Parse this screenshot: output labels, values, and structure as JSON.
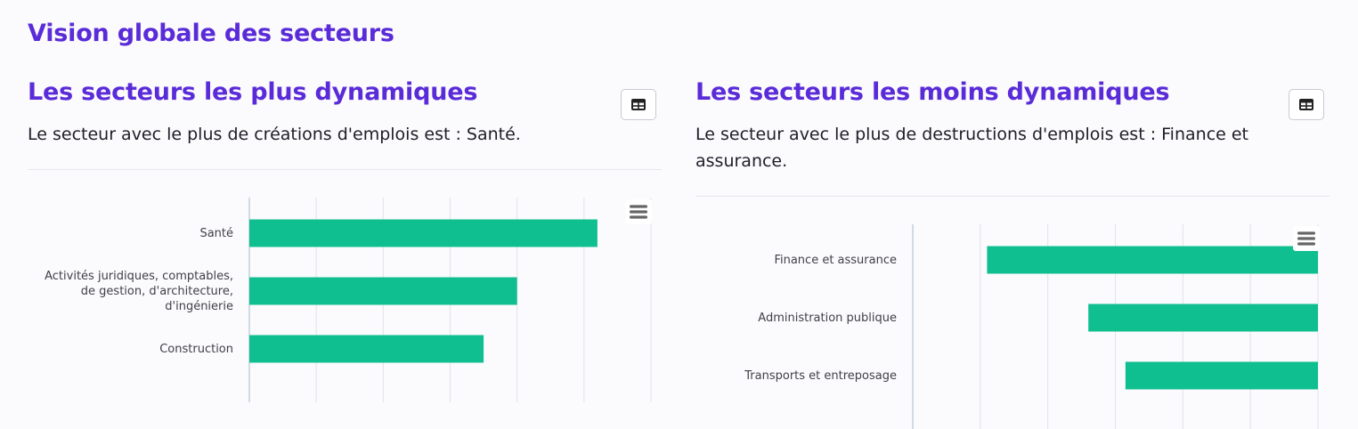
{
  "page": {
    "title": "Vision globale des secteurs"
  },
  "panels": [
    {
      "title": "Les secteurs les plus dynamiques",
      "description": "Le secteur avec le plus de créations d'emplois est : Santé.",
      "table_icon": "table-icon",
      "menu_icon": "hamburger-menu-icon"
    },
    {
      "title": "Les secteurs les moins dynamiques",
      "description": "Le secteur avec le plus de destructions d'emplois est : Finance et assurance.",
      "table_icon": "table-icon",
      "menu_icon": "hamburger-menu-icon"
    }
  ],
  "colors": {
    "accent": "#5a2bd8",
    "bar": "#10bf8f",
    "grid": "#e2e2ea"
  },
  "chart_data": [
    {
      "type": "bar",
      "orientation": "horizontal",
      "categories": [
        "Santé",
        "Activités juridiques, comptables, de gestion, d'architecture, d'ingénierie",
        "Construction"
      ],
      "category_lines": [
        [
          "Santé"
        ],
        [
          "Activités juridiques, comptables,",
          "de gestion, d'architecture,",
          "d'ingénierie"
        ],
        [
          "Construction"
        ]
      ],
      "values": [
        5.2,
        4.0,
        3.5
      ],
      "xlim": [
        0,
        6
      ],
      "grid": true
    },
    {
      "type": "bar",
      "orientation": "horizontal",
      "categories": [
        "Finance et assurance",
        "Administration publique",
        "Transports et entreposage"
      ],
      "category_lines": [
        [
          "Finance et assurance"
        ],
        [
          "Administration publique"
        ],
        [
          "Transports et entreposage"
        ]
      ],
      "values": [
        -4.9,
        -3.4,
        -2.85
      ],
      "xlim": [
        -6,
        0
      ],
      "grid": true
    }
  ]
}
